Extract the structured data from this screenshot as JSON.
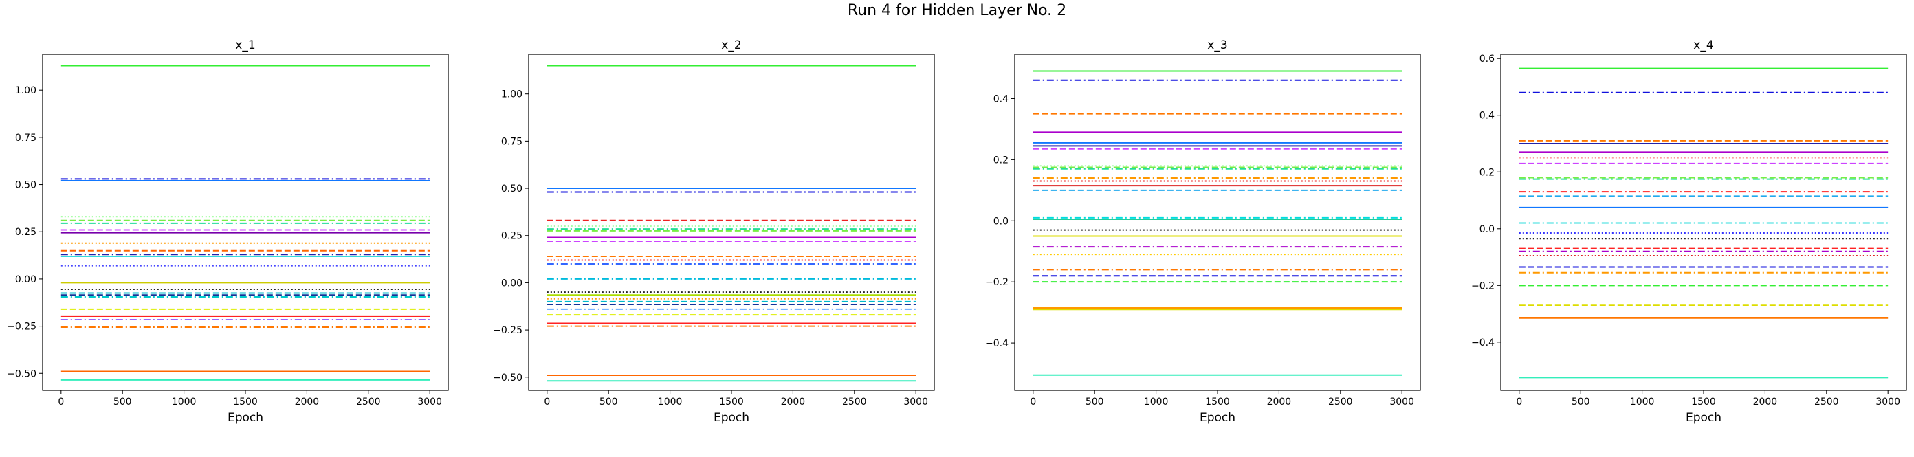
{
  "figure": {
    "suptitle": "Run 4 for Hidden Layer No. 2"
  },
  "chart_data": [
    {
      "type": "line",
      "title": "x_1",
      "xlabel": "Epoch",
      "ylabel": "",
      "xlim": [
        -150,
        3150
      ],
      "ylim": [
        -0.59,
        1.19
      ],
      "xticks": [
        0,
        500,
        1000,
        1500,
        2000,
        2500,
        3000
      ],
      "yticks": [
        -0.5,
        -0.25,
        0.0,
        0.25,
        0.5,
        0.75,
        1.0
      ],
      "ytick_labels": [
        "−0.50",
        "−0.25",
        "0.00",
        "0.25",
        "0.50",
        "0.75",
        "1.00"
      ],
      "x_range": [
        0,
        3000
      ],
      "grid": false,
      "series": [
        {
          "value": 1.13,
          "color": "#33ee33",
          "style": "solid"
        },
        {
          "value": 0.53,
          "color": "#1111dd",
          "style": "dashdot"
        },
        {
          "value": 0.52,
          "color": "#1177ff",
          "style": "solid"
        },
        {
          "value": 0.33,
          "color": "#aaffaa",
          "style": "dotted"
        },
        {
          "value": 0.31,
          "color": "#77ee44",
          "style": "dashed"
        },
        {
          "value": 0.295,
          "color": "#22dd99",
          "style": "dashdot"
        },
        {
          "value": 0.26,
          "color": "#cc44ff",
          "style": "dashed"
        },
        {
          "value": 0.245,
          "color": "#7700aa",
          "style": "solid"
        },
        {
          "value": 0.19,
          "color": "#ff9900",
          "style": "dotted"
        },
        {
          "value": 0.15,
          "color": "#ff6600",
          "style": "dashed"
        },
        {
          "value": 0.13,
          "color": "#2222aa",
          "style": "dashdot"
        },
        {
          "value": 0.12,
          "color": "#33dddd",
          "style": "solid"
        },
        {
          "value": 0.07,
          "color": "#4444ff",
          "style": "dotted"
        },
        {
          "value": -0.02,
          "color": "#cccc00",
          "style": "solid"
        },
        {
          "value": -0.055,
          "color": "#222222",
          "style": "dotted"
        },
        {
          "value": -0.075,
          "color": "#00bbcc",
          "style": "dashed"
        },
        {
          "value": -0.085,
          "color": "#113399",
          "style": "dashed"
        },
        {
          "value": -0.095,
          "color": "#00cccc",
          "style": "dashdot"
        },
        {
          "value": -0.16,
          "color": "#ddee00",
          "style": "dashed"
        },
        {
          "value": -0.2,
          "color": "#ff2222",
          "style": "solid"
        },
        {
          "value": -0.215,
          "color": "#9966ff",
          "style": "dashdot"
        },
        {
          "value": -0.255,
          "color": "#ff7700",
          "style": "dashdot"
        },
        {
          "value": -0.49,
          "color": "#ff6600",
          "style": "solid"
        },
        {
          "value": -0.535,
          "color": "#33eebb",
          "style": "solid"
        }
      ]
    },
    {
      "type": "line",
      "title": "x_2",
      "xlabel": "Epoch",
      "ylabel": "",
      "xlim": [
        -150,
        3150
      ],
      "ylim": [
        -0.57,
        1.21
      ],
      "xticks": [
        0,
        500,
        1000,
        1500,
        2000,
        2500,
        3000
      ],
      "yticks": [
        -0.5,
        -0.25,
        0.0,
        0.25,
        0.5,
        0.75,
        1.0
      ],
      "ytick_labels": [
        "−0.50",
        "−0.25",
        "0.00",
        "0.25",
        "0.50",
        "0.75",
        "1.00"
      ],
      "x_range": [
        0,
        3000
      ],
      "grid": false,
      "series": [
        {
          "value": 1.15,
          "color": "#33ee33",
          "style": "solid"
        },
        {
          "value": 0.5,
          "color": "#1177ff",
          "style": "solid"
        },
        {
          "value": 0.48,
          "color": "#1111dd",
          "style": "dashdot"
        },
        {
          "value": 0.33,
          "color": "#ee2222",
          "style": "dashed"
        },
        {
          "value": 0.3,
          "color": "#aaffaa",
          "style": "dotted"
        },
        {
          "value": 0.285,
          "color": "#22dd99",
          "style": "dashdot"
        },
        {
          "value": 0.275,
          "color": "#77ee44",
          "style": "dashed"
        },
        {
          "value": 0.24,
          "color": "#aa00cc",
          "style": "solid"
        },
        {
          "value": 0.22,
          "color": "#cc44ff",
          "style": "dashed"
        },
        {
          "value": 0.14,
          "color": "#ff7700",
          "style": "dashed"
        },
        {
          "value": 0.12,
          "color": "#ff2222",
          "style": "dotted"
        },
        {
          "value": 0.1,
          "color": "#3366ff",
          "style": "dashdot"
        },
        {
          "value": 0.02,
          "color": "#00bbdd",
          "style": "dashdot"
        },
        {
          "value": -0.05,
          "color": "#222222",
          "style": "dotted"
        },
        {
          "value": -0.065,
          "color": "#aadd00",
          "style": "solid"
        },
        {
          "value": -0.085,
          "color": "#ff9900",
          "style": "dotted"
        },
        {
          "value": -0.1,
          "color": "#00bbcc",
          "style": "dashed"
        },
        {
          "value": -0.115,
          "color": "#113399",
          "style": "dashed"
        },
        {
          "value": -0.14,
          "color": "#66aaff",
          "style": "dashdot"
        },
        {
          "value": -0.17,
          "color": "#ddee00",
          "style": "dashed"
        },
        {
          "value": -0.215,
          "color": "#ff2222",
          "style": "solid"
        },
        {
          "value": -0.23,
          "color": "#ff7700",
          "style": "dashdot"
        },
        {
          "value": -0.49,
          "color": "#ff6600",
          "style": "solid"
        },
        {
          "value": -0.52,
          "color": "#33eebb",
          "style": "solid"
        }
      ]
    },
    {
      "type": "line",
      "title": "x_3",
      "xlabel": "Epoch",
      "ylabel": "",
      "xlim": [
        -150,
        3150
      ],
      "ylim": [
        -0.555,
        0.545
      ],
      "xticks": [
        0,
        500,
        1000,
        1500,
        2000,
        2500,
        3000
      ],
      "yticks": [
        -0.4,
        -0.2,
        0.0,
        0.2,
        0.4
      ],
      "ytick_labels": [
        "−0.4",
        "−0.2",
        "0.0",
        "0.2",
        "0.4"
      ],
      "x_range": [
        0,
        3000
      ],
      "grid": false,
      "series": [
        {
          "value": 0.49,
          "color": "#33ee33",
          "style": "solid"
        },
        {
          "value": 0.46,
          "color": "#1111dd",
          "style": "dashdot"
        },
        {
          "value": 0.35,
          "color": "#ff7700",
          "style": "dashed"
        },
        {
          "value": 0.29,
          "color": "#aa00cc",
          "style": "solid"
        },
        {
          "value": 0.255,
          "color": "#1177ff",
          "style": "solid"
        },
        {
          "value": 0.245,
          "color": "#2222aa",
          "style": "solid"
        },
        {
          "value": 0.235,
          "color": "#cc44ff",
          "style": "dashed"
        },
        {
          "value": 0.18,
          "color": "#aaffaa",
          "style": "dotted"
        },
        {
          "value": 0.175,
          "color": "#77ee44",
          "style": "dashed"
        },
        {
          "value": 0.17,
          "color": "#22dd99",
          "style": "dashdot"
        },
        {
          "value": 0.14,
          "color": "#ff9900",
          "style": "dashdot"
        },
        {
          "value": 0.13,
          "color": "#ee2222",
          "style": "dotted"
        },
        {
          "value": 0.115,
          "color": "#dd2222",
          "style": "solid"
        },
        {
          "value": 0.1,
          "color": "#22aaee",
          "style": "dashed"
        },
        {
          "value": 0.01,
          "color": "#00dddd",
          "style": "dashdot"
        },
        {
          "value": 0.005,
          "color": "#22cc99",
          "style": "solid"
        },
        {
          "value": -0.03,
          "color": "#222222",
          "style": "dotted"
        },
        {
          "value": -0.05,
          "color": "#dddd00",
          "style": "solid"
        },
        {
          "value": -0.085,
          "color": "#aa00cc",
          "style": "dashdot"
        },
        {
          "value": -0.11,
          "color": "#ffcc00",
          "style": "dotted"
        },
        {
          "value": -0.16,
          "color": "#ff7700",
          "style": "dashdot"
        },
        {
          "value": -0.18,
          "color": "#1111dd",
          "style": "dashed"
        },
        {
          "value": -0.2,
          "color": "#33ee33",
          "style": "dashed"
        },
        {
          "value": -0.285,
          "color": "#ff9900",
          "style": "solid"
        },
        {
          "value": -0.29,
          "color": "#dddd00",
          "style": "solid"
        },
        {
          "value": -0.505,
          "color": "#33eebb",
          "style": "solid"
        }
      ]
    },
    {
      "type": "line",
      "title": "x_4",
      "xlabel": "Epoch",
      "ylabel": "",
      "xlim": [
        -150,
        3150
      ],
      "ylim": [
        -0.57,
        0.615
      ],
      "xticks": [
        0,
        500,
        1000,
        1500,
        2000,
        2500,
        3000
      ],
      "yticks": [
        -0.4,
        -0.2,
        0.0,
        0.2,
        0.4,
        0.6
      ],
      "ytick_labels": [
        "−0.4",
        "−0.2",
        "0.0",
        "0.2",
        "0.4",
        "0.6"
      ],
      "x_range": [
        0,
        3000
      ],
      "grid": false,
      "series": [
        {
          "value": 0.565,
          "color": "#33ee33",
          "style": "solid"
        },
        {
          "value": 0.48,
          "color": "#1111dd",
          "style": "dashdot"
        },
        {
          "value": 0.31,
          "color": "#ff7700",
          "style": "dashed"
        },
        {
          "value": 0.3,
          "color": "#2222aa",
          "style": "solid"
        },
        {
          "value": 0.27,
          "color": "#aa00cc",
          "style": "solid"
        },
        {
          "value": 0.25,
          "color": "#ff9999",
          "style": "dotted"
        },
        {
          "value": 0.23,
          "color": "#cc44ff",
          "style": "dashed"
        },
        {
          "value": 0.18,
          "color": "#77ee44",
          "style": "dashed"
        },
        {
          "value": 0.175,
          "color": "#22dd99",
          "style": "dashdot"
        },
        {
          "value": 0.13,
          "color": "#ff2222",
          "style": "dashdot"
        },
        {
          "value": 0.115,
          "color": "#22aaee",
          "style": "dashed"
        },
        {
          "value": 0.075,
          "color": "#1177ff",
          "style": "solid"
        },
        {
          "value": 0.02,
          "color": "#33dddd",
          "style": "dashdot"
        },
        {
          "value": -0.015,
          "color": "#3333ff",
          "style": "dotted"
        },
        {
          "value": -0.035,
          "color": "#222222",
          "style": "dotted"
        },
        {
          "value": -0.07,
          "color": "#ff2222",
          "style": "dashed"
        },
        {
          "value": -0.08,
          "color": "#aa00cc",
          "style": "dashdot"
        },
        {
          "value": -0.095,
          "color": "#dd2222",
          "style": "dotted"
        },
        {
          "value": -0.135,
          "color": "#1111dd",
          "style": "dashed"
        },
        {
          "value": -0.155,
          "color": "#ff9900",
          "style": "dashdot"
        },
        {
          "value": -0.2,
          "color": "#33ee33",
          "style": "dashed"
        },
        {
          "value": -0.27,
          "color": "#dddd00",
          "style": "dashed"
        },
        {
          "value": -0.315,
          "color": "#ff7700",
          "style": "solid"
        },
        {
          "value": -0.525,
          "color": "#33eebb",
          "style": "solid"
        }
      ]
    }
  ]
}
